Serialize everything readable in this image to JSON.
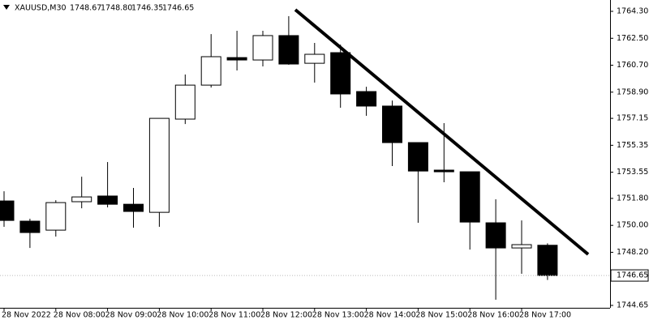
{
  "chart_data": {
    "type": "candlestick",
    "title": "XAUUSD,M30",
    "header_values": [
      "1748.67",
      "1748.80",
      "1746.35",
      "1746.65"
    ],
    "categories": [
      "28 Nov 2022",
      null,
      "28 Nov 08:00",
      null,
      "28 Nov 09:00",
      null,
      "28 Nov 10:00",
      null,
      "28 Nov 11:00",
      null,
      "28 Nov 12:00",
      null,
      "28 Nov 13:00",
      null,
      "28 Nov 14:00",
      null,
      "28 Nov 15:00",
      null,
      "28 Nov 16:00",
      null,
      "28 Nov 17:00",
      null
    ],
    "open": [
      1751.63,
      1750.28,
      1749.68,
      1751.58,
      1751.96,
      1751.41,
      1750.87,
      1757.1,
      1759.37,
      1761.21,
      1761.05,
      1762.68,
      1760.83,
      1761.54,
      1758.94,
      1757.97,
      1755.53,
      1753.69,
      1753.58,
      1750.17,
      1748.49,
      1748.67
    ],
    "high": [
      1752.28,
      1750.44,
      1751.68,
      1753.25,
      1754.23,
      1752.5,
      1757.15,
      1760.08,
      1762.78,
      1763.0,
      1763.0,
      1763.98,
      1762.19,
      1762.08,
      1759.26,
      1758.34,
      1755.53,
      1756.83,
      1753.58,
      1751.74,
      1750.33,
      1748.8
    ],
    "low": [
      1749.9,
      1748.49,
      1749.25,
      1751.14,
      1751.2,
      1749.84,
      1749.9,
      1756.77,
      1759.21,
      1760.35,
      1760.62,
      1760.73,
      1759.54,
      1757.86,
      1757.32,
      1753.96,
      1750.17,
      1752.88,
      1748.38,
      1745.03,
      1746.76,
      1746.35
    ],
    "close": [
      1750.33,
      1749.52,
      1751.52,
      1751.9,
      1751.41,
      1750.93,
      1757.15,
      1759.37,
      1761.27,
      1761.05,
      1762.68,
      1760.78,
      1761.43,
      1758.78,
      1757.97,
      1755.53,
      1753.63,
      1753.58,
      1750.22,
      1748.49,
      1748.71,
      1746.65
    ],
    "up_color": "#ffffff",
    "down_color": "#000000",
    "last_price": 1746.65,
    "ylim": [
      1744.49,
      1764.95
    ],
    "yticks": [
      {
        "value": 1744.65,
        "label": "1744.65"
      },
      {
        "value": 1748.2,
        "label": "1748.20"
      },
      {
        "value": 1750.0,
        "label": "1750.00"
      },
      {
        "value": 1751.8,
        "label": "1751.80"
      },
      {
        "value": 1753.55,
        "label": "1753.55"
      },
      {
        "value": 1755.35,
        "label": "1755.35"
      },
      {
        "value": 1757.15,
        "label": "1757.15"
      },
      {
        "value": 1758.9,
        "label": "1758.90"
      },
      {
        "value": 1760.7,
        "label": "1760.70"
      },
      {
        "value": 1762.5,
        "label": "1762.50"
      },
      {
        "value": 1764.3,
        "label": "1764.30"
      }
    ]
  }
}
